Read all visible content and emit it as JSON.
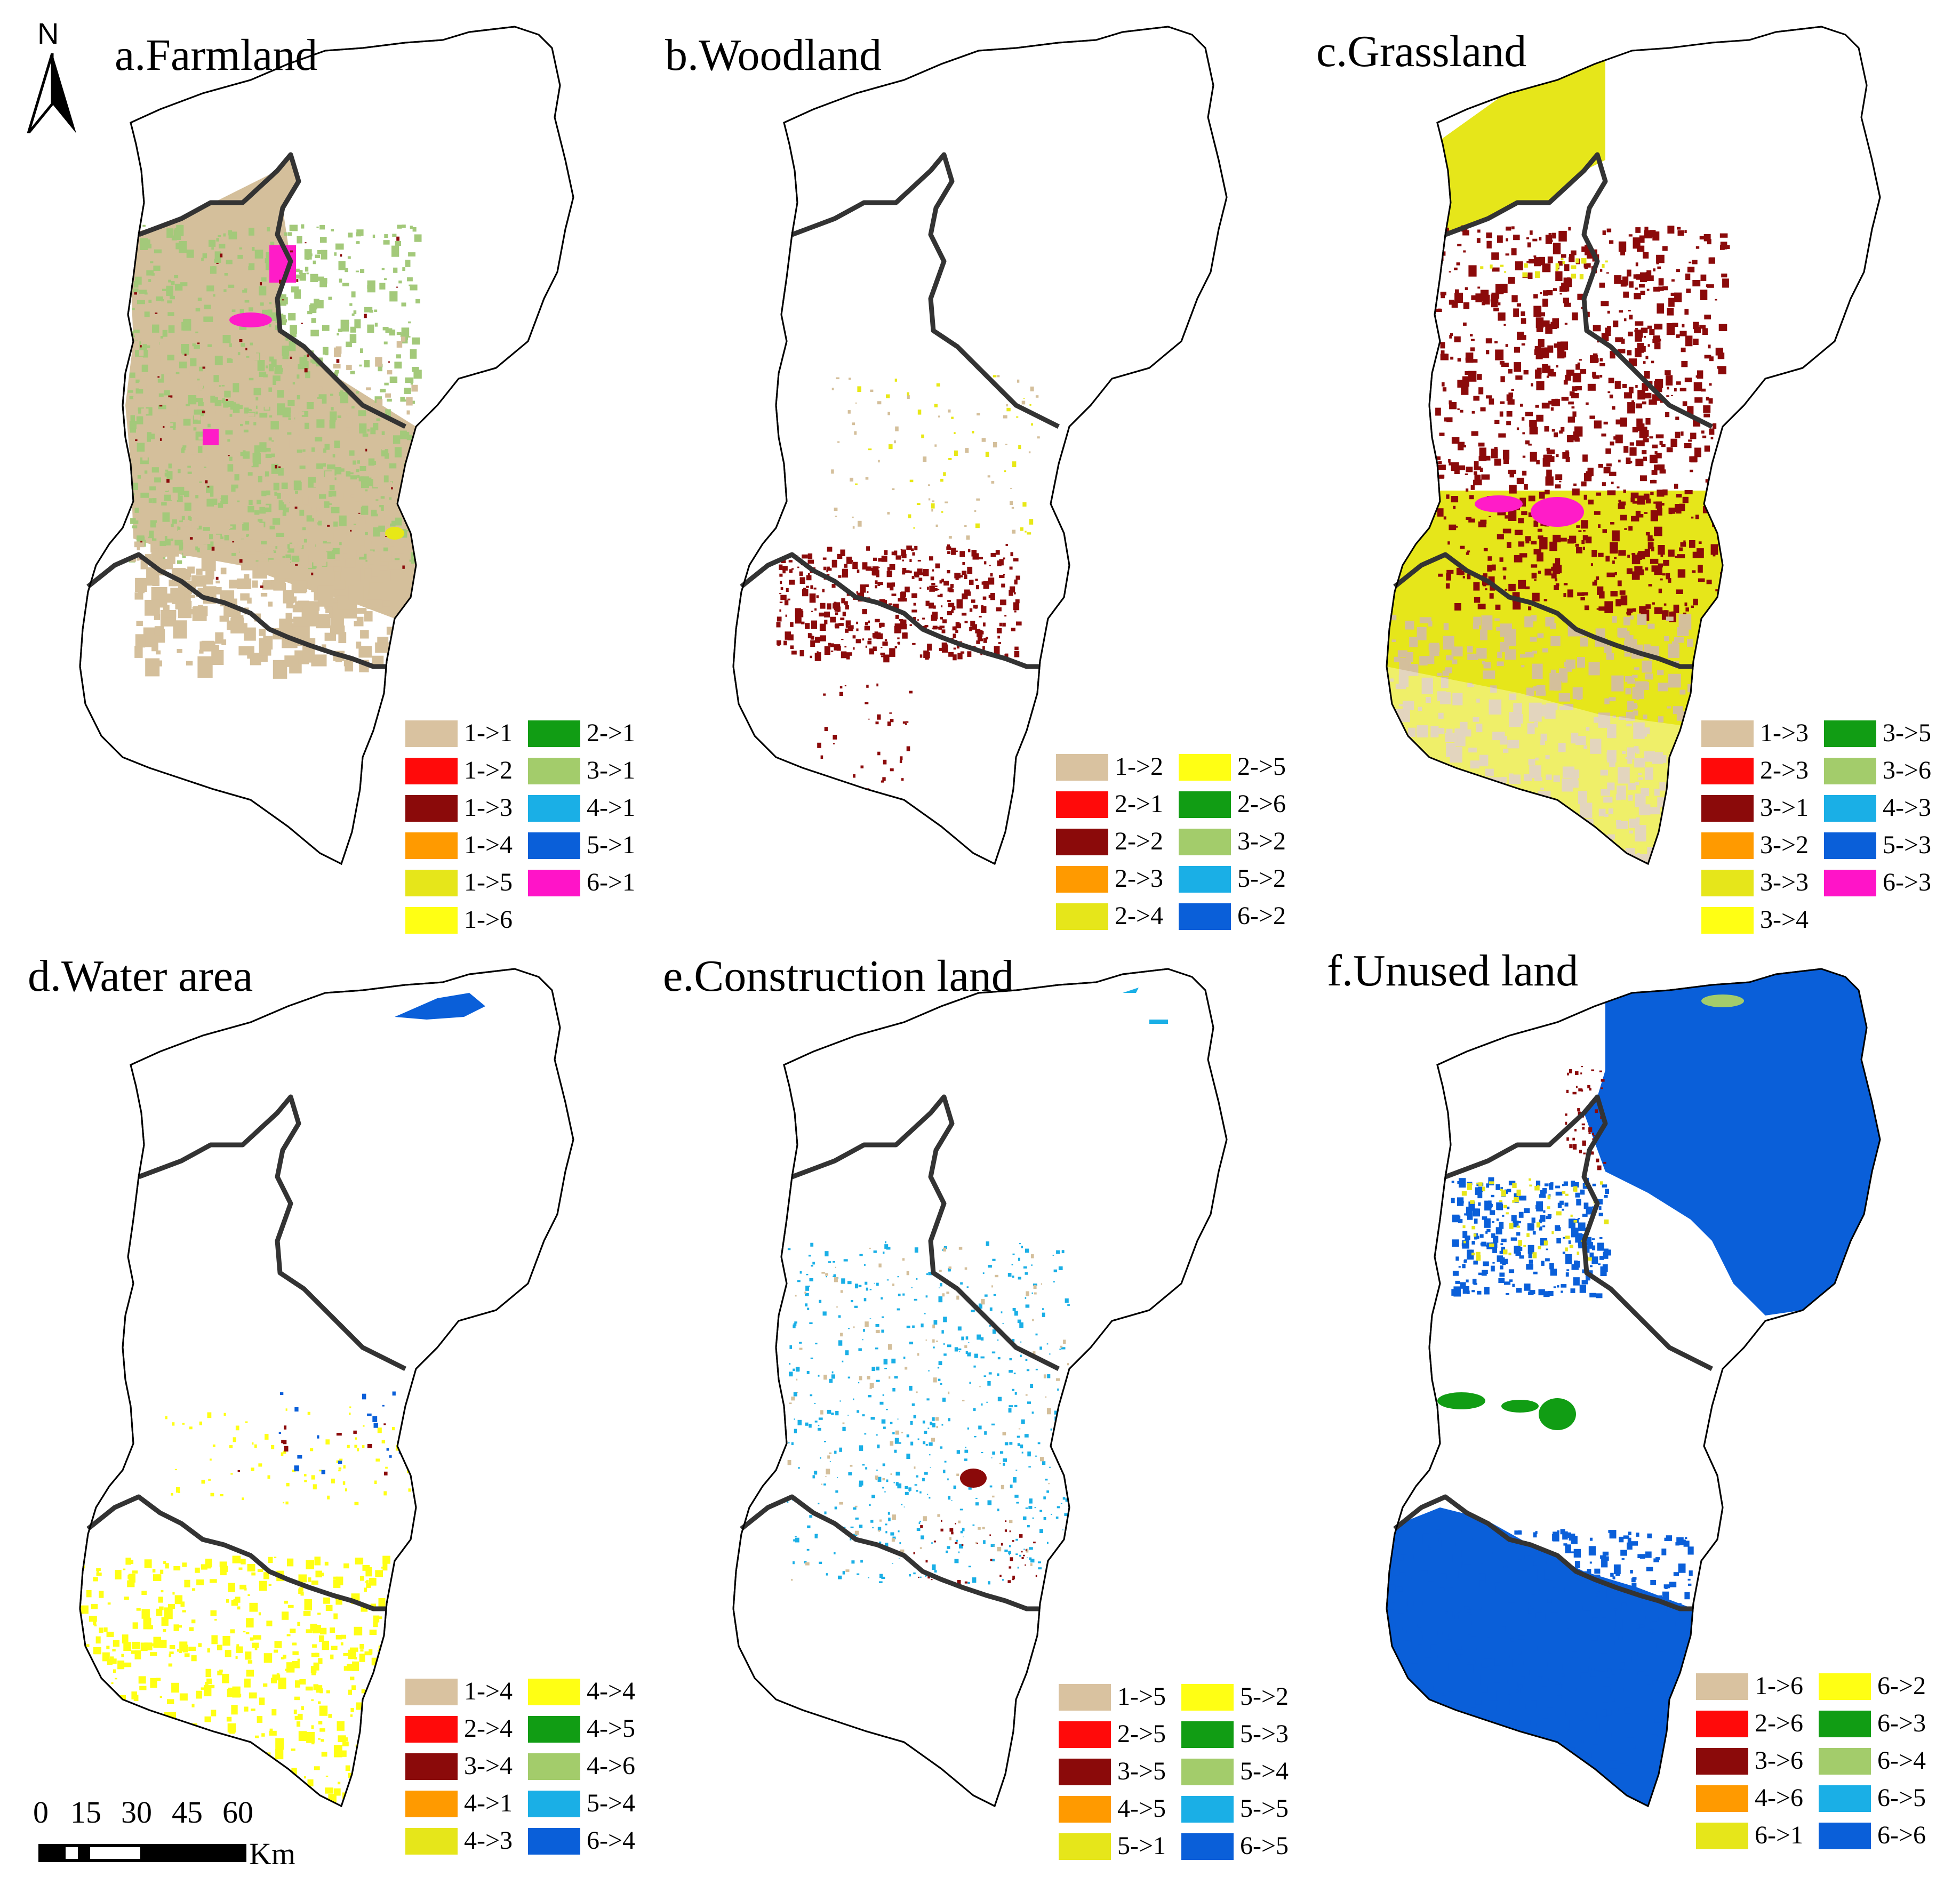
{
  "north_arrow": {
    "label": "N"
  },
  "scale_bar": {
    "ticks": [
      "0",
      "15",
      "30",
      "45",
      "60"
    ],
    "unit": "Km"
  },
  "panels": [
    {
      "title": "a.Farmland",
      "fill_colors": [
        "#d4bf9b",
        "#a3c97a",
        "#ff1cc8",
        "#e8e816",
        "#8b0a0a"
      ],
      "legend": [
        {
          "label": "1->1",
          "color": "#d9c2a0"
        },
        {
          "label": "1->2",
          "color": "#ff0a0a"
        },
        {
          "label": "1->3",
          "color": "#8b0a0a"
        },
        {
          "label": "1->4",
          "color": "#ff9a00"
        },
        {
          "label": "1->5",
          "color": "#e6e61a"
        },
        {
          "label": "1->6",
          "color": "#ffff14"
        },
        {
          "label": "2->1",
          "color": "#119d14"
        },
        {
          "label": "3->1",
          "color": "#a3cc6b"
        },
        {
          "label": "4->1",
          "color": "#1aafe6"
        },
        {
          "label": "5->1",
          "color": "#0a5fd9"
        },
        {
          "label": "6->1",
          "color": "#ff14c8"
        }
      ]
    },
    {
      "title": "b.Woodland",
      "fill_colors": [
        "#8b0a0a",
        "#d4bf9b",
        "#e8e816"
      ],
      "legend": [
        {
          "label": "1->2",
          "color": "#d9c2a0"
        },
        {
          "label": "2->1",
          "color": "#ff0a0a"
        },
        {
          "label": "2->2",
          "color": "#8b0a0a"
        },
        {
          "label": "2->3",
          "color": "#ff9a00"
        },
        {
          "label": "2->4",
          "color": "#e6e61a"
        },
        {
          "label": "2->5",
          "color": "#ffff14"
        },
        {
          "label": "2->6",
          "color": "#119d14"
        },
        {
          "label": "3->2",
          "color": "#a3cc6b"
        },
        {
          "label": "5->2",
          "color": "#1aafe6"
        },
        {
          "label": "6->2",
          "color": "#0a5fd9"
        }
      ]
    },
    {
      "title": "c.Grassland",
      "fill_colors": [
        "#e6e61a",
        "#8b0a0a",
        "#ff1cc8",
        "#d4bf9b"
      ],
      "legend": [
        {
          "label": "1->3",
          "color": "#d9c2a0"
        },
        {
          "label": "2->3",
          "color": "#ff0a0a"
        },
        {
          "label": "3->1",
          "color": "#8b0a0a"
        },
        {
          "label": "3->2",
          "color": "#ff9a00"
        },
        {
          "label": "3->3",
          "color": "#e6e61a"
        },
        {
          "label": "3->4",
          "color": "#ffff14"
        },
        {
          "label": "3->5",
          "color": "#119d14"
        },
        {
          "label": "3->6",
          "color": "#a3cc6b"
        },
        {
          "label": "4->3",
          "color": "#1aafe6"
        },
        {
          "label": "5->3",
          "color": "#0a5fd9"
        },
        {
          "label": "6->3",
          "color": "#ff14c8"
        }
      ]
    },
    {
      "title": "d.Water area",
      "fill_colors": [
        "#ffff14",
        "#0a5fd9",
        "#8b0a0a"
      ],
      "legend": [
        {
          "label": "1->4",
          "color": "#d9c2a0"
        },
        {
          "label": "2->4",
          "color": "#ff0a0a"
        },
        {
          "label": "3->4",
          "color": "#8b0a0a"
        },
        {
          "label": "4->1",
          "color": "#ff9a00"
        },
        {
          "label": "4->3",
          "color": "#e6e61a"
        },
        {
          "label": "4->4",
          "color": "#ffff14"
        },
        {
          "label": "4->5",
          "color": "#119d14"
        },
        {
          "label": "4->6",
          "color": "#a3cc6b"
        },
        {
          "label": "5->4",
          "color": "#1aafe6"
        },
        {
          "label": "6->4",
          "color": "#0a5fd9"
        }
      ]
    },
    {
      "title": "e.Construction land",
      "fill_colors": [
        "#1aafe6",
        "#8b0a0a",
        "#d4bf9b"
      ],
      "legend": [
        {
          "label": "1->5",
          "color": "#d9c2a0"
        },
        {
          "label": "2->5",
          "color": "#ff0a0a"
        },
        {
          "label": "3->5",
          "color": "#8b0a0a"
        },
        {
          "label": "4->5",
          "color": "#ff9a00"
        },
        {
          "label": "5->1",
          "color": "#e6e61a"
        },
        {
          "label": "5->2",
          "color": "#ffff14"
        },
        {
          "label": "5->3",
          "color": "#119d14"
        },
        {
          "label": "5->4",
          "color": "#a3cc6b"
        },
        {
          "label": "5->5",
          "color": "#1aafe6"
        },
        {
          "label": "6->5",
          "color": "#0a5fd9"
        }
      ]
    },
    {
      "title": "f.Unused land",
      "fill_colors": [
        "#0a5fd9",
        "#119d14",
        "#e6e61a",
        "#8b0a0a",
        "#a3cc6b"
      ],
      "legend": [
        {
          "label": "1->6",
          "color": "#d9c2a0"
        },
        {
          "label": "2->6",
          "color": "#ff0a0a"
        },
        {
          "label": "3->6",
          "color": "#8b0a0a"
        },
        {
          "label": "4->6",
          "color": "#ff9a00"
        },
        {
          "label": "6->1",
          "color": "#e6e61a"
        },
        {
          "label": "6->2",
          "color": "#ffff14"
        },
        {
          "label": "6->3",
          "color": "#119d14"
        },
        {
          "label": "6->4",
          "color": "#a3cc6b"
        },
        {
          "label": "6->5",
          "color": "#1aafe6"
        },
        {
          "label": "6->6",
          "color": "#0a5fd9"
        }
      ]
    }
  ]
}
